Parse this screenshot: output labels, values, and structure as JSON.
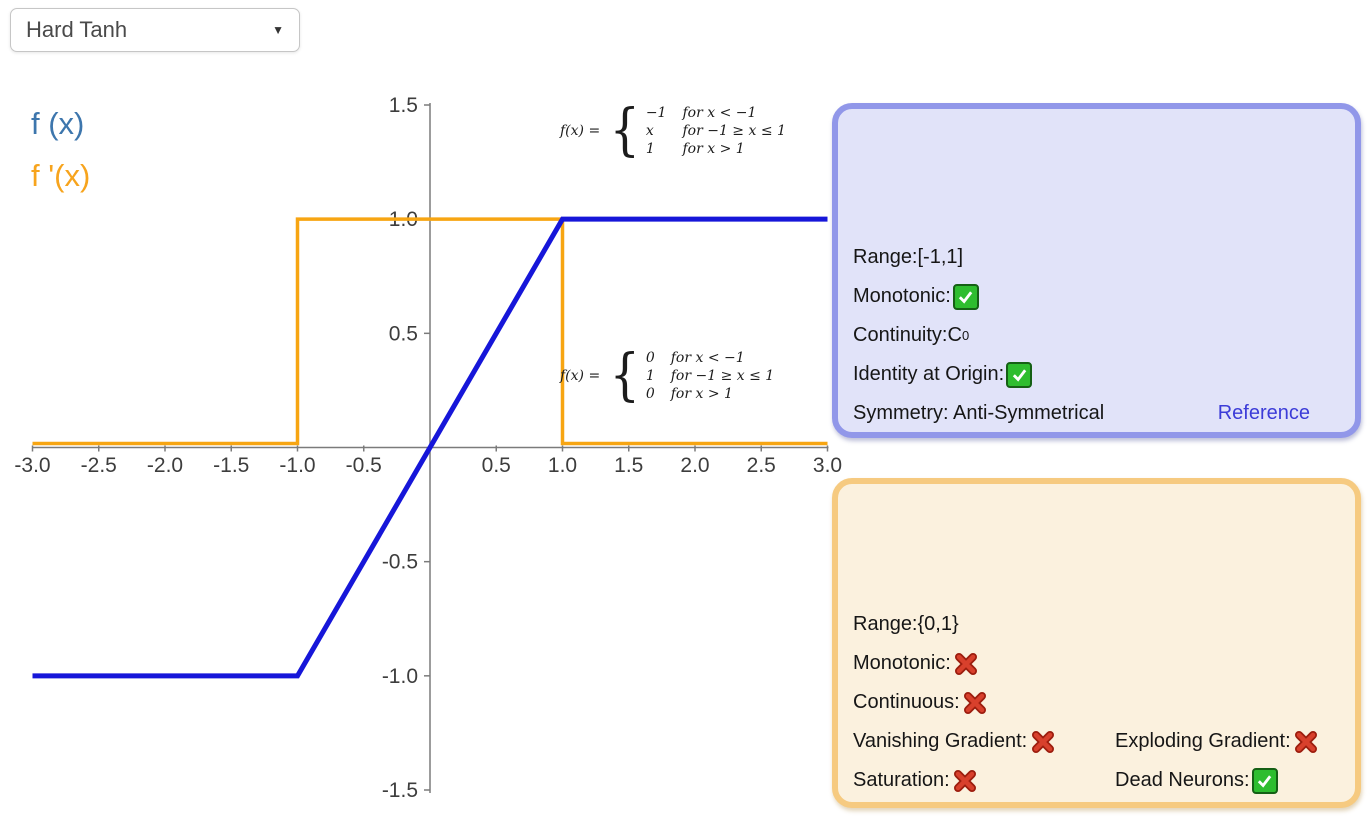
{
  "dropdown": {
    "value": "Hard Tanh",
    "caret_icon": "▼"
  },
  "legend": {
    "fx": "f (x)",
    "dfx": "f '(x)"
  },
  "formula_fx": {
    "lhs": "f(x) =",
    "brace": "{",
    "rows": [
      {
        "value": "−1",
        "cond": "for x < −1"
      },
      {
        "value": "x",
        "cond": "for −1 ≥ x ≤ 1"
      },
      {
        "value": "1",
        "cond": "for x > 1"
      }
    ]
  },
  "formula_dfx": {
    "lhs": "f(x) =",
    "brace": "{",
    "rows": [
      {
        "value": "0",
        "cond": "for x < −1"
      },
      {
        "value": "1",
        "cond": "for −1 ≥ x ≤ 1"
      },
      {
        "value": "0",
        "cond": "for x > 1"
      }
    ]
  },
  "fx_panel": {
    "range": "Range:[-1,1]",
    "monotonic": "Monotonic:",
    "monotonic_status": "check",
    "continuity": "Continuity:C",
    "continuity_sup": "0",
    "identity": "Identity at Origin:",
    "identity_status": "check",
    "symmetry": "Symmetry: Anti-Symmetrical",
    "reference": "Reference"
  },
  "dfx_panel": {
    "range": "Range:{0,1}",
    "monotonic": "Monotonic:",
    "monotonic_status": "cross",
    "continuous": "Continuous:",
    "continuous_status": "cross",
    "vanishing": "Vanishing Gradient:",
    "vanishing_status": "cross",
    "exploding": "Exploding Gradient:",
    "exploding_status": "cross",
    "saturation": "Saturation:",
    "saturation_status": "cross",
    "dead": "Dead Neurons:",
    "dead_status": "check"
  },
  "colors": {
    "fx_curve": "#1616d9",
    "dfx_curve": "#f7a512",
    "axis": "#7b7b7b",
    "fx_legend": "#3d76ad",
    "dfx_legend": "#f7a41d",
    "blue_panel_border": "#9197e9",
    "blue_panel_bg": "#e1e3f9",
    "orange_panel_border": "#f6ca80",
    "orange_panel_bg": "#fbf1de",
    "link": "#3c3cd8",
    "check_green": "#2ebd2f",
    "cross_red": "#d8402c"
  },
  "chart_data": {
    "type": "line",
    "title": "",
    "xlabel": "",
    "ylabel": "",
    "xlim": [
      -3,
      3
    ],
    "ylim": [
      -1.5,
      1.5
    ],
    "grid": false,
    "legend_position": "top-left",
    "xticks": [
      {
        "v": -3.0,
        "label": "-3.0"
      },
      {
        "v": -2.5,
        "label": "-2.5"
      },
      {
        "v": -2.0,
        "label": "-2.0"
      },
      {
        "v": -1.5,
        "label": "-1.5"
      },
      {
        "v": -1.0,
        "label": "-1.0"
      },
      {
        "v": -0.5,
        "label": "-0.5"
      },
      {
        "v": 0.5,
        "label": "0.5"
      },
      {
        "v": 1.0,
        "label": "1.0"
      },
      {
        "v": 1.5,
        "label": "1.5"
      },
      {
        "v": 2.0,
        "label": "2.0"
      },
      {
        "v": 2.5,
        "label": "2.5"
      },
      {
        "v": 3.0,
        "label": "3.0"
      }
    ],
    "yticks": [
      {
        "v": 1.5,
        "label": "1.5"
      },
      {
        "v": 1.0,
        "label": "1.0"
      },
      {
        "v": 0.5,
        "label": "0.5"
      },
      {
        "v": -0.5,
        "label": "-0.5"
      },
      {
        "v": -1.0,
        "label": "-1.0"
      },
      {
        "v": -1.5,
        "label": "-1.5"
      }
    ],
    "series": [
      {
        "name": "f(x)",
        "color": "#1616d9",
        "points": [
          [
            -3,
            -1
          ],
          [
            -1,
            -1
          ],
          [
            1,
            1
          ],
          [
            3,
            1
          ]
        ]
      },
      {
        "name": "f'(x)",
        "color": "#f7a512",
        "points": [
          [
            -3,
            0
          ],
          [
            -1,
            0
          ],
          [
            -1,
            1
          ],
          [
            1,
            1
          ],
          [
            1,
            0
          ],
          [
            3,
            0
          ]
        ]
      }
    ]
  }
}
